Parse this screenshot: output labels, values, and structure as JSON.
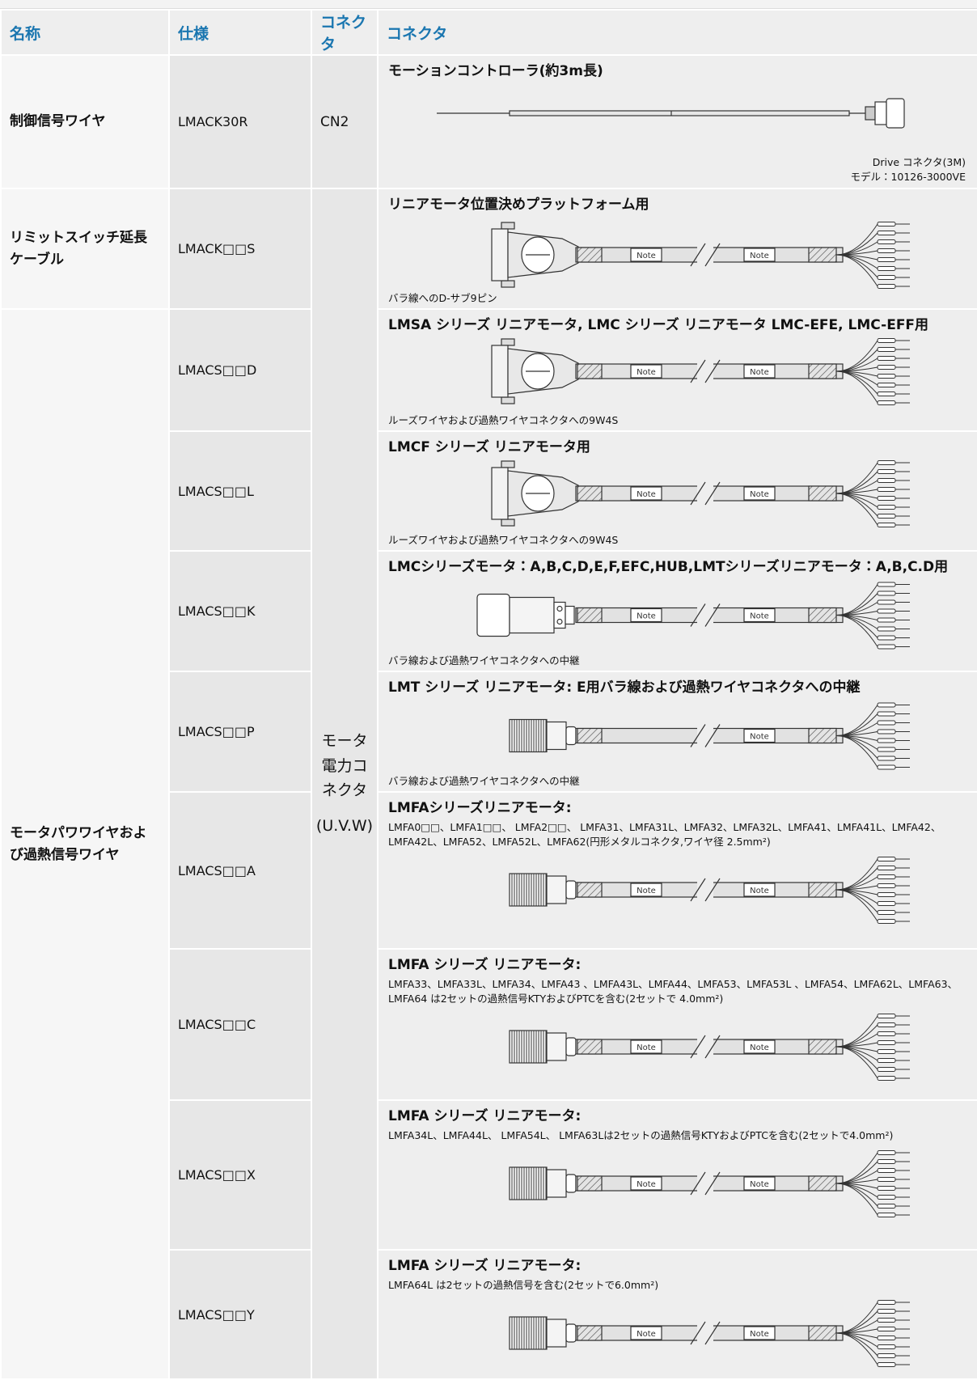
{
  "table": {
    "header": [
      "名称",
      "仕様",
      "コネクタ",
      "コネクタ"
    ],
    "note_label": "Note",
    "rows": [
      {
        "name": "制御信号ワイヤ",
        "spec": "LMACK30R",
        "connector": "CN2",
        "title": "モーションコントローラ(約3m長)",
        "labels": [
          "Drive コネクタ(3M)",
          "モデル：10126-3000VE"
        ]
      },
      {
        "name": "リミットスイッチ延長ケーブル",
        "spec": "LMACK□□S",
        "connector": [
          "モータ電力コネクタ",
          "(U.V.W)"
        ],
        "title": "リニアモータ位置決めプラットフォーム用",
        "caption": "バラ線へのD-サブ9ピン"
      },
      {
        "name": "モータパワワイヤおよび過熱信号ワイヤ",
        "spec": "LMACS□□D",
        "title": "LMSA シリーズ リニアモータ, LMC シリーズ リニアモータ LMC-EFE, LMC-EFF用",
        "caption": "ルーズワイヤおよび過熱ワイヤコネクタへの9W4S"
      },
      {
        "spec": "LMACS□□L",
        "title": "LMCF シリーズ リニアモータ用",
        "caption": "ルーズワイヤおよび過熱ワイヤコネクタへの9W4S"
      },
      {
        "spec": "LMACS□□K",
        "title": "LMCシリーズモータ：A,B,C,D,E,F,EFC,HUB,LMTシリーズリニアモータ：A,B,C.D用",
        "caption": "バラ線および過熱ワイヤコネクタへの中継"
      },
      {
        "spec": "LMACS□□P",
        "title": "LMT シリーズ リニアモータ: E用バラ線および過熱ワイヤコネクタへの中継",
        "caption": "バラ線および過熱ワイヤコネクタへの中継"
      },
      {
        "spec": "LMACS□□A",
        "title": "LMFAシリーズリニアモータ:",
        "detail": "LMFA0□□、LMFA1□□、 LMFA2□□、 LMFA31、LMFA31L、LMFA32、LMFA32L、LMFA41、LMFA41L、LMFA42、LMFA42L、LMFA52、LMFA52L、LMFA62(円形メタルコネクタ,ワイヤ径 2.5mm²)"
      },
      {
        "spec": "LMACS□□C",
        "title": "LMFA シリーズ リニアモータ:",
        "detail": "LMFA33、LMFA33L、LMFA34、LMFA43 、LMFA43L、LMFA44、LMFA53、LMFA53L 、LMFA54、LMFA62L、LMFA63、LMFA64 は2セットの過熱信号KTYおよびPTCを含む(2セットで 4.0mm²)"
      },
      {
        "spec": "LMACS□□X",
        "title": "LMFA シリーズ リニアモータ:",
        "detail": "LMFA34L、LMFA44L、 LMFA54L、 LMFA63Lは2セットの過熱信号KTYおよびPTCを含む(2セットで4.0mm²)"
      },
      {
        "spec": "LMACS□□Y",
        "title": "LMFA シリーズ リニアモータ:",
        "detail": "LMFA64L は2セットの過熱信号を含む(2セットで6.0mm²)"
      }
    ]
  }
}
